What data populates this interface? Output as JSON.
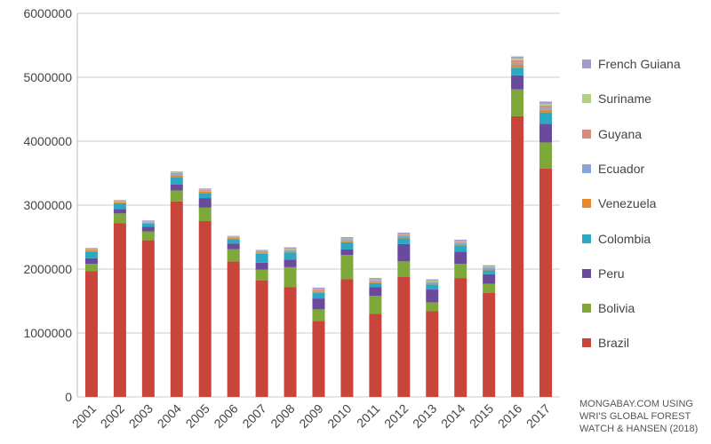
{
  "chart_data": {
    "type": "bar",
    "stacked": true,
    "title": "",
    "xlabel": "",
    "ylabel": "",
    "ylim": [
      0,
      6000000
    ],
    "yticks": [
      "0",
      "1000000",
      "2000000",
      "3000000",
      "4000000",
      "5000000",
      "6000000"
    ],
    "categories": [
      "2001",
      "2002",
      "2003",
      "2004",
      "2005",
      "2006",
      "2007",
      "2008",
      "2009",
      "2010",
      "2011",
      "2012",
      "2013",
      "2014",
      "2015",
      "2016",
      "2017"
    ],
    "series": [
      {
        "name": "Brazil",
        "color": "#c9443a",
        "values": [
          1970000,
          2720000,
          2450000,
          3060000,
          2750000,
          2120000,
          1820000,
          1720000,
          1190000,
          1840000,
          1300000,
          1880000,
          1340000,
          1860000,
          1630000,
          4390000,
          3570000
        ]
      },
      {
        "name": "Bolivia",
        "color": "#7fa83a",
        "values": [
          110000,
          150000,
          140000,
          170000,
          210000,
          190000,
          170000,
          310000,
          180000,
          380000,
          280000,
          240000,
          140000,
          220000,
          140000,
          420000,
          410000
        ]
      },
      {
        "name": "Peru",
        "color": "#6a4a9c",
        "values": [
          90000,
          70000,
          70000,
          90000,
          150000,
          90000,
          110000,
          120000,
          170000,
          90000,
          140000,
          270000,
          200000,
          190000,
          150000,
          220000,
          290000
        ]
      },
      {
        "name": "Colombia",
        "color": "#2aa8c4",
        "values": [
          100000,
          90000,
          50000,
          120000,
          80000,
          70000,
          140000,
          110000,
          90000,
          110000,
          60000,
          90000,
          80000,
          100000,
          60000,
          120000,
          180000
        ]
      },
      {
        "name": "Venezuela",
        "color": "#e8882a",
        "values": [
          20000,
          15000,
          15000,
          30000,
          20000,
          15000,
          20000,
          20000,
          20000,
          20000,
          20000,
          20000,
          20000,
          20000,
          20000,
          50000,
          40000
        ]
      },
      {
        "name": "Ecuador",
        "color": "#86a7d6",
        "values": [
          10000,
          10000,
          10000,
          15000,
          10000,
          10000,
          10000,
          15000,
          15000,
          15000,
          15000,
          15000,
          15000,
          15000,
          15000,
          25000,
          25000
        ]
      },
      {
        "name": "Guyana",
        "color": "#d88c80",
        "values": [
          15000,
          10000,
          10000,
          15000,
          15000,
          10000,
          10000,
          15000,
          15000,
          15000,
          15000,
          20000,
          15000,
          20000,
          15000,
          40000,
          40000
        ]
      },
      {
        "name": "Suriname",
        "color": "#b4cf85",
        "values": [
          5000,
          5000,
          5000,
          10000,
          10000,
          5000,
          5000,
          10000,
          10000,
          10000,
          10000,
          10000,
          10000,
          10000,
          10000,
          30000,
          30000
        ]
      },
      {
        "name": "French Guiana",
        "color": "#a39bc9",
        "values": [
          10000,
          10000,
          10000,
          15000,
          15000,
          10000,
          15000,
          20000,
          20000,
          20000,
          20000,
          25000,
          20000,
          25000,
          20000,
          30000,
          35000
        ]
      }
    ],
    "legend_position": "right",
    "grid": true,
    "note": [
      "MONGABAY.COM USING",
      "WRI'S GLOBAL FOREST",
      "WATCH & HANSEN (2018)"
    ]
  }
}
